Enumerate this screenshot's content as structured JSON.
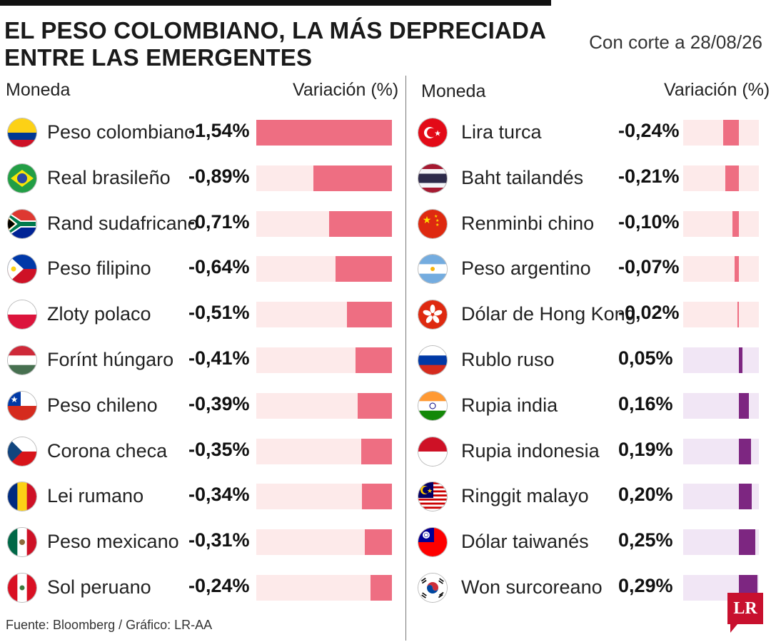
{
  "header": {
    "title_line1": "EL PESO COLOMBIANO, LA MÁS DEPRECIADA",
    "title_line2": "ENTRE LAS EMERGENTES",
    "date": "Con corte a 28/08/26"
  },
  "columns": {
    "currency_label": "Moneda",
    "variation_label": "Variación (%)"
  },
  "footer": {
    "source": "Fuente: Bloomberg  / Gráfico: LR-AA",
    "logo": "LR"
  },
  "colors": {
    "negative_bar": "#ee6e82",
    "negative_track": "#fdeaea",
    "positive_bar": "#7d2681",
    "positive_track": "#f1e6f5"
  },
  "chart_data": [
    {
      "type": "bar",
      "title": "EL PESO COLOMBIANO, LA MÁS DEPRECIADA ENTRE LAS EMERGENTES",
      "xlabel": "Moneda",
      "ylabel": "Variación (%)",
      "categories": [
        "Peso colombiano",
        "Real brasileño",
        "Rand sudafricano",
        "Peso filipino",
        "Zloty polaco",
        "Forínt húngaro",
        "Peso chileno",
        "Corona checa",
        "Lei rumano",
        "Peso mexicano",
        "Sol peruano"
      ],
      "labels": [
        "-1,54%",
        "-0,89%",
        "-0,71%",
        "-0,64%",
        "-0,51%",
        "-0,41%",
        "-0,39%",
        "-0,35%",
        "-0,34%",
        "-0,31%",
        "-0,24%"
      ],
      "values": [
        -1.54,
        -0.89,
        -0.71,
        -0.64,
        -0.51,
        -0.41,
        -0.39,
        -0.35,
        -0.34,
        -0.31,
        -0.24
      ],
      "flags": [
        "colombia-flag-icon",
        "brazil-flag-icon",
        "south-africa-flag-icon",
        "philippines-flag-icon",
        "poland-flag-icon",
        "hungary-flag-icon",
        "chile-flag-icon",
        "czech-flag-icon",
        "romania-flag-icon",
        "mexico-flag-icon",
        "peru-flag-icon"
      ]
    },
    {
      "type": "bar",
      "title": "",
      "xlabel": "Moneda",
      "ylabel": "Variación (%)",
      "categories": [
        "Lira turca",
        "Baht tailandés",
        "Renminbi chino",
        "Peso argentino",
        "Dólar de Hong Kong",
        "Rublo ruso",
        "Rupia india",
        "Rupia indonesia",
        "Ringgit malayo",
        "Dólar taiwanés",
        "Won surcoreano"
      ],
      "labels": [
        "-0,24%",
        "-0,21%",
        "-0,10%",
        "-0,07%",
        "-0,02%",
        "0,05%",
        "0,16%",
        "0,19%",
        "0,20%",
        "0,25%",
        "0,29%"
      ],
      "values": [
        -0.24,
        -0.21,
        -0.1,
        -0.07,
        -0.02,
        0.05,
        0.16,
        0.19,
        0.2,
        0.25,
        0.29
      ],
      "flags": [
        "turkey-flag-icon",
        "thailand-flag-icon",
        "china-flag-icon",
        "argentina-flag-icon",
        "hong-kong-flag-icon",
        "russia-flag-icon",
        "india-flag-icon",
        "indonesia-flag-icon",
        "malaysia-flag-icon",
        "taiwan-flag-icon",
        "south-korea-flag-icon"
      ]
    }
  ]
}
